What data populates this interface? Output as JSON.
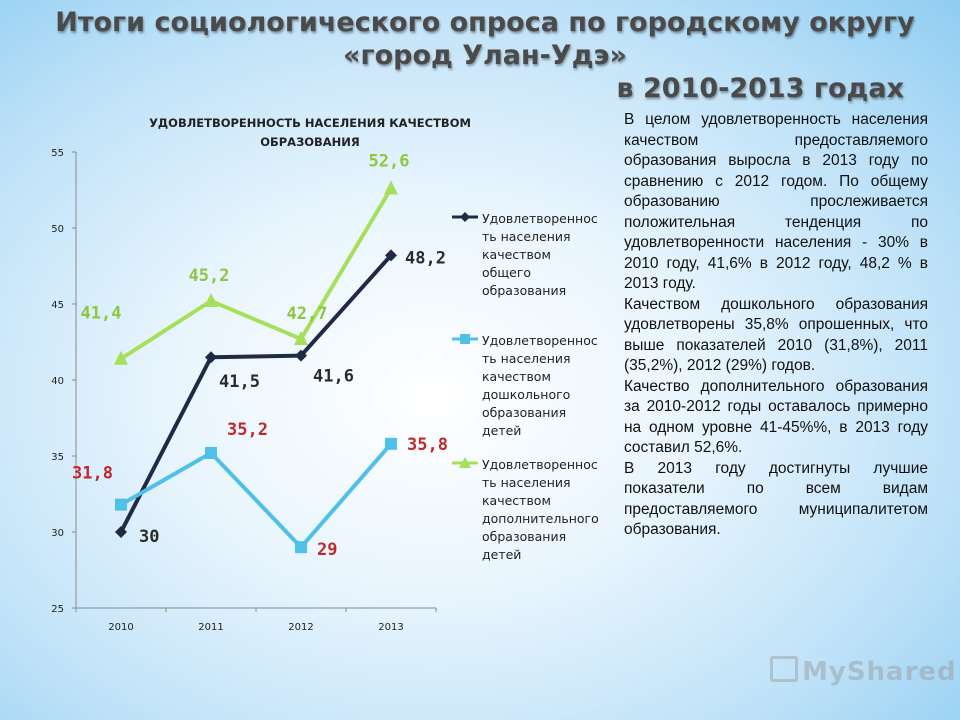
{
  "page": {
    "title_line1": "Итоги социологического опроса по городскому округу «город  Улан-Удэ»",
    "title_line2": "в 2010-2013 годах"
  },
  "chart_data": {
    "type": "line",
    "title_lines": [
      "УДОВЛЕТВОРЕННОСТЬ НАСЕЛЕНИЯ КАЧЕСТВОМ",
      "ОБРАЗОВАНИЯ"
    ],
    "x": [
      "2010",
      "2011",
      "2012",
      "2013"
    ],
    "ylim": [
      25,
      55
    ],
    "yticks": [
      "25",
      "30",
      "35",
      "40",
      "45",
      "50",
      "55"
    ],
    "grid": false,
    "legend_position": "right",
    "series": [
      {
        "name": "Удовлетвореннос\nть населения\nкачеством\nобщего\nобразования",
        "values": [
          30,
          41.5,
          41.6,
          48.2
        ],
        "labels": [
          "30",
          "41,5",
          "41,6",
          "48,2"
        ],
        "color": "#1f2a44",
        "marker": "diamond",
        "label_color": "#2b2b2b"
      },
      {
        "name": "Удовлетвореннос\nть населения\nкачеством\nдошкольного\nобразования\nдетей",
        "values": [
          31.8,
          35.2,
          29,
          35.8
        ],
        "labels": [
          "31,8",
          "35,2",
          "29",
          "35,8"
        ],
        "color": "#4fc0e8",
        "marker": "square",
        "label_color": "#c0282d"
      },
      {
        "name": "Удовлетвореннос\nть населения\nкачеством\nдополнительного\nобразования\nдетей",
        "values": [
          41.4,
          45.2,
          42.7,
          52.6
        ],
        "labels": [
          "41,4",
          "45,2",
          "42,7",
          "52,6"
        ],
        "color": "#a6e05a",
        "marker": "triangle",
        "label_color": "#8dc63f"
      }
    ]
  },
  "description": [
    "В целом удовлетворенность населения качеством предоставляемого образования выросла в 2013 году по сравнению с 2012 годом. По общему образованию прослеживается положительная тенденция по удовлетворенности населения  - 30% в 2010 году, 41,6% в 2012 году, 48,2 % в 2013 году.",
    "Качеством дошкольного образования удовлетворены 35,8% опрошенных, что выше показателей 2010 (31,8%), 2011 (35,2%), 2012 (29%) годов.",
    "Качество дополнительного образования  за 2010-2012 годы оставалось примерно на одном уровне  41-45%%, в 2013 году составил 52,6%.",
    "В 2013 году достигнуты лучшие показатели по всем видам предоставляемого муниципалитетом образования."
  ],
  "watermark": "MyShared"
}
